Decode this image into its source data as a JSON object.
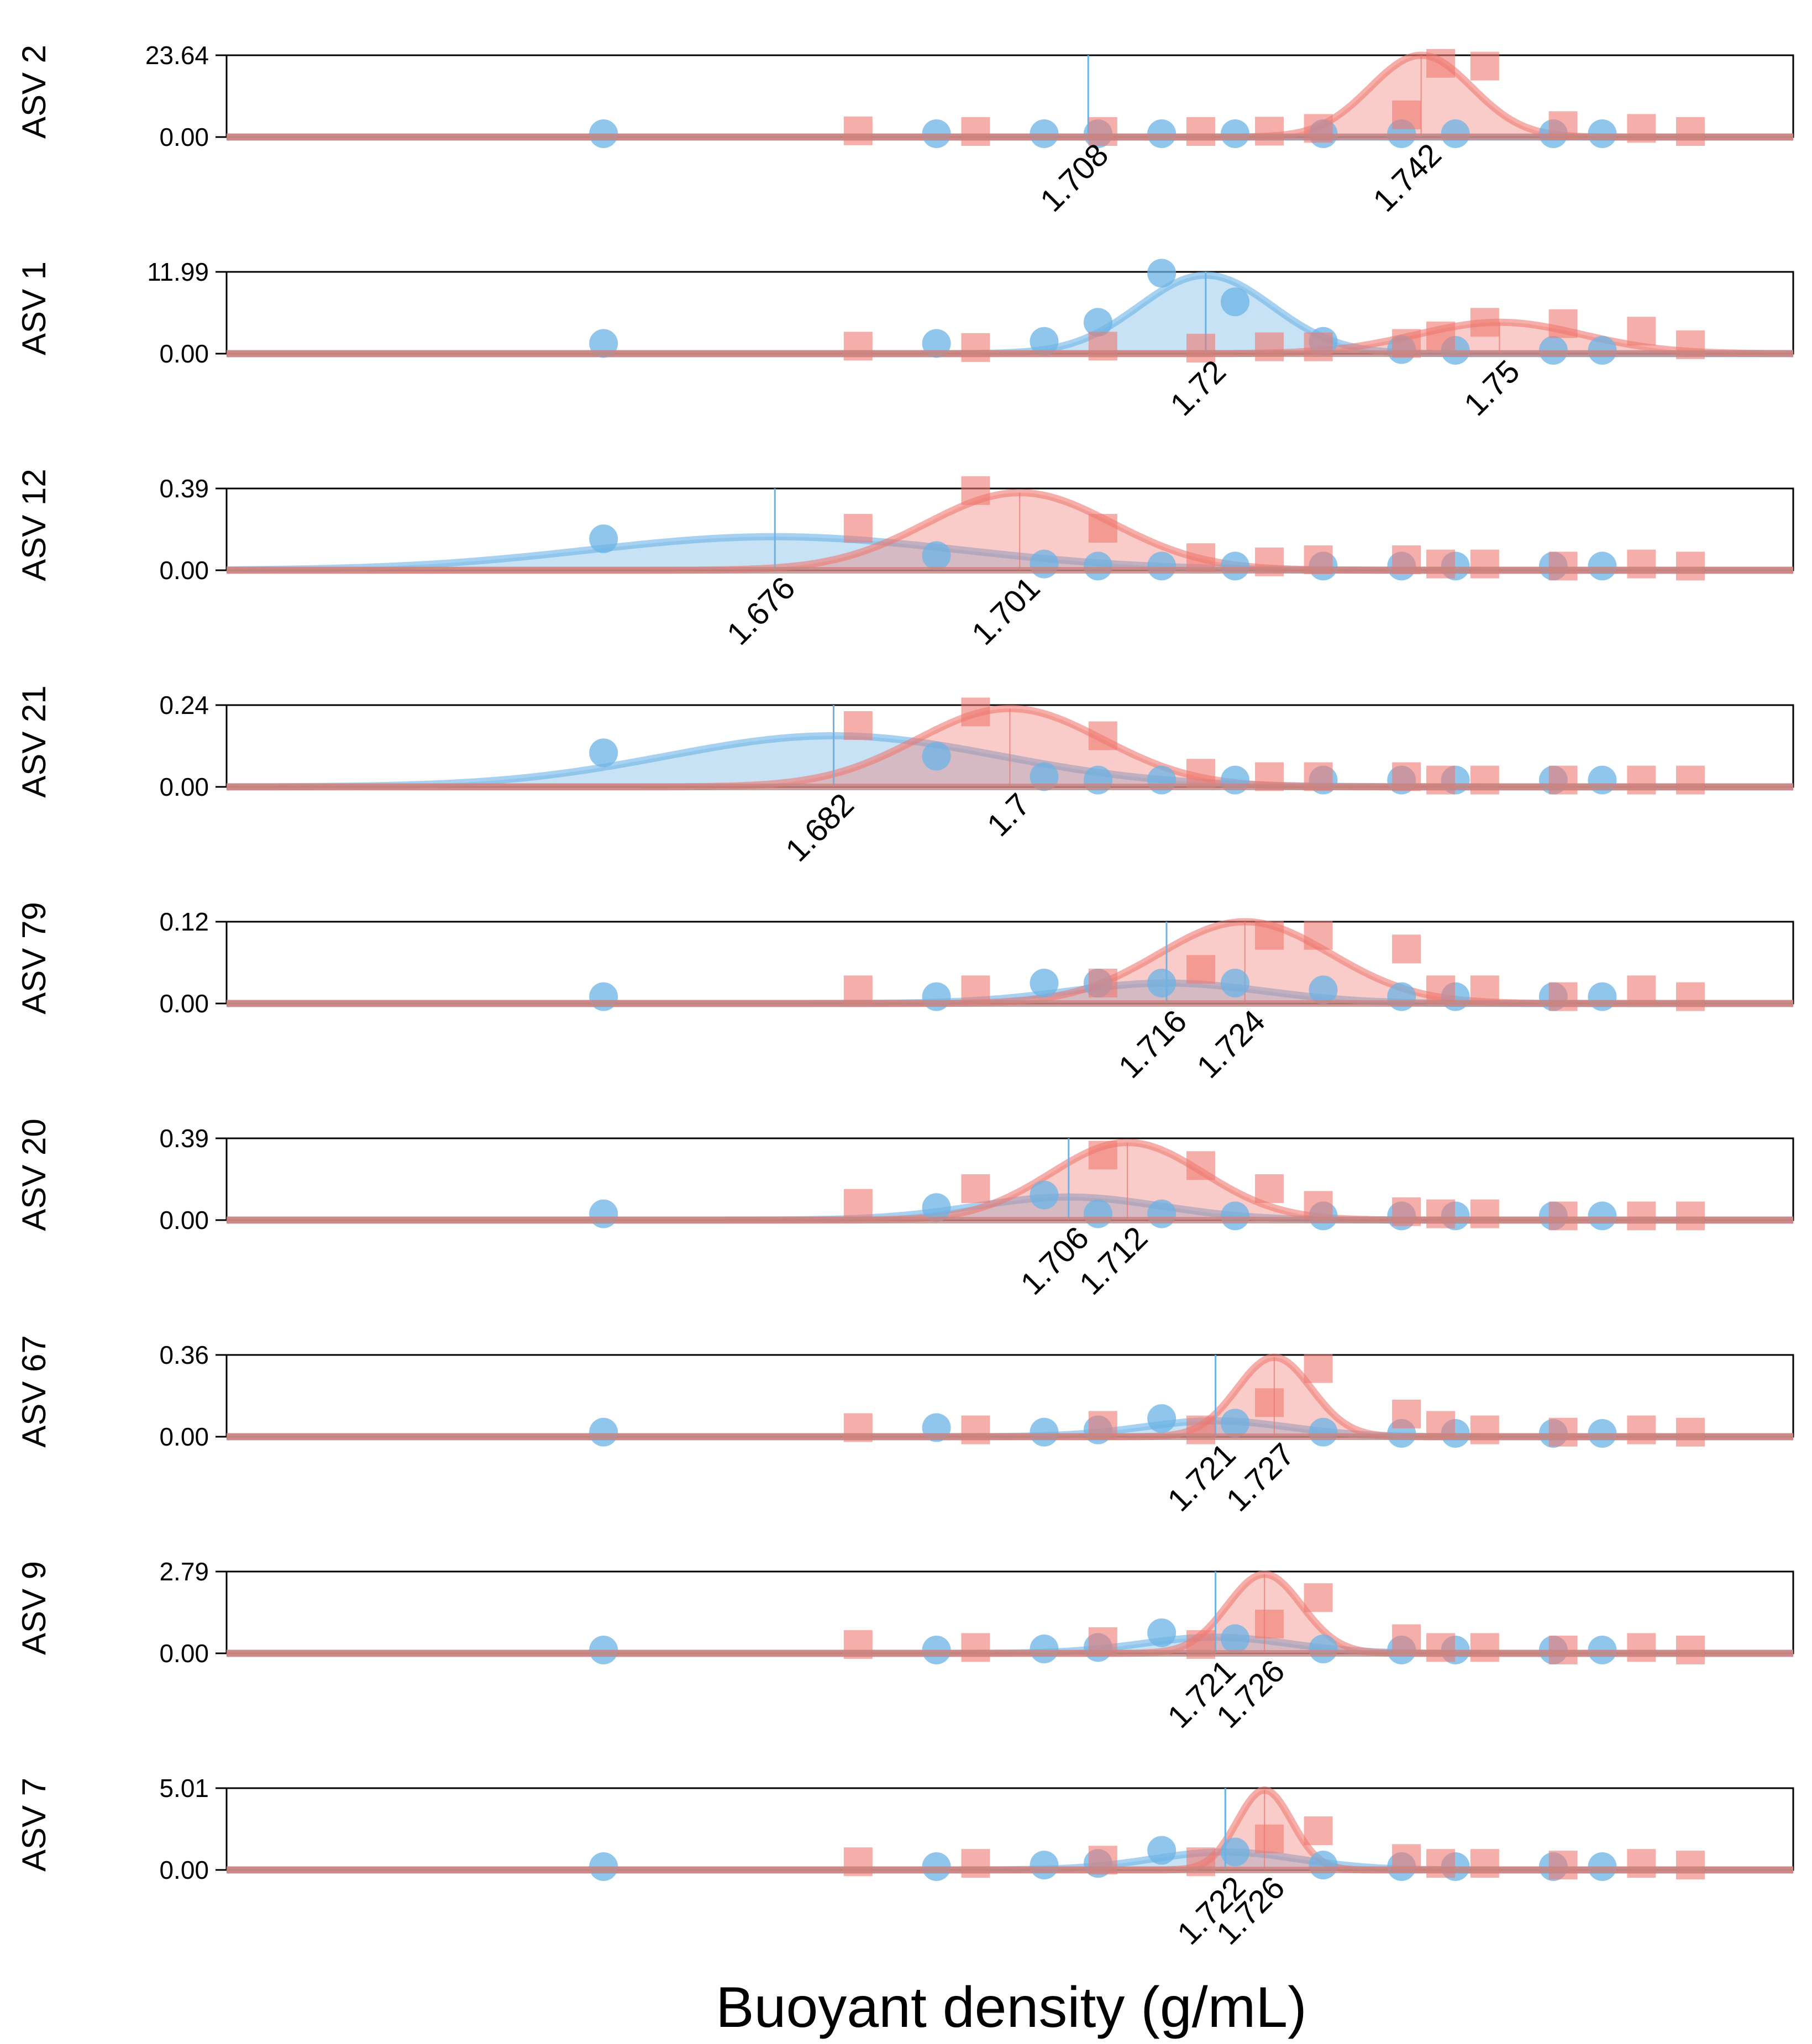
{
  "chart_data": {
    "type": "line",
    "title": "",
    "xlabel": "Buoyant density (g/mL)",
    "xlim": [
      1.62,
      1.78
    ],
    "colors": {
      "unlabeled": "#6bb3e6",
      "labeled": "#ee7870",
      "axis": "#000000"
    },
    "fractions": {
      "unlabeled_x": [
        1.6585,
        1.6925,
        1.7035,
        1.709,
        1.7155,
        1.723,
        1.732,
        1.74,
        1.7455,
        1.7555,
        1.7605
      ],
      "labeled_x": [
        1.6845,
        1.6965,
        1.7095,
        1.7195,
        1.7265,
        1.7315,
        1.7405,
        1.744,
        1.7485,
        1.7565,
        1.7645,
        1.7695
      ]
    },
    "panels": [
      {
        "name": "ASV 2",
        "ylabel": "ASV 2",
        "yticks": [
          "23.64",
          "0.00"
        ],
        "ymax": 23.64,
        "unlabeled_peak_label": "1.708",
        "labeled_peak_label": "1.742",
        "unlabeled_peak": 1.708,
        "labeled_peak": 1.742,
        "unlabeled_curve": {
          "mu": 1.708,
          "sd": 0.01,
          "amp": 0.0
        },
        "labeled_curve": {
          "mu": 1.742,
          "sd": 0.0052,
          "amp": 23.64
        },
        "unlabeled_values": [
          0.2,
          0.2,
          0.2,
          0.2,
          0.2,
          0.2,
          0.2,
          0.2,
          0.2,
          0.2,
          0.2
        ],
        "labeled_values": [
          1.8,
          1.6,
          1.6,
          1.6,
          1.7,
          2.5,
          6.4,
          21.3,
          20.5,
          3.3,
          2.5,
          1.6
        ]
      },
      {
        "name": "ASV 1",
        "ylabel": "ASV 1",
        "yticks": [
          "11.99",
          "0.00"
        ],
        "ymax": 11.99,
        "unlabeled_peak_label": "1.72",
        "labeled_peak_label": "1.75",
        "unlabeled_peak": 1.72,
        "labeled_peak": 1.75,
        "unlabeled_curve": {
          "mu": 1.72,
          "sd": 0.0068,
          "amp": 11.5
        },
        "labeled_curve": {
          "mu": 1.75,
          "sd": 0.0085,
          "amp": 4.6
        },
        "unlabeled_values": [
          1.5,
          1.5,
          1.8,
          4.6,
          11.8,
          7.6,
          1.8,
          0.6,
          0.4,
          0.3,
          0.3
        ],
        "labeled_values": [
          1.1,
          0.9,
          1.1,
          0.8,
          1.0,
          1.0,
          1.5,
          2.6,
          4.6,
          4.4,
          3.3,
          1.3
        ]
      },
      {
        "name": "ASV 12",
        "ylabel": "ASV 12",
        "yticks": [
          "0.39",
          "0.00"
        ],
        "ymax": 0.39,
        "unlabeled_peak_label": "1.676",
        "labeled_peak_label": "1.701",
        "unlabeled_peak": 1.676,
        "labeled_peak": 1.701,
        "unlabeled_curve": {
          "mu": 1.676,
          "sd": 0.019,
          "amp": 0.16
        },
        "labeled_curve": {
          "mu": 1.701,
          "sd": 0.0095,
          "amp": 0.37
        },
        "unlabeled_values": [
          0.15,
          0.07,
          0.03,
          0.02,
          0.02,
          0.02,
          0.02,
          0.02,
          0.02,
          0.02,
          0.02
        ],
        "labeled_values": [
          0.2,
          0.38,
          0.2,
          0.06,
          0.04,
          0.05,
          0.05,
          0.03,
          0.03,
          0.02,
          0.03,
          0.02
        ]
      },
      {
        "name": "ASV 21",
        "ylabel": "ASV 21",
        "yticks": [
          "0.24",
          "0.00"
        ],
        "ymax": 0.24,
        "unlabeled_peak_label": "1.682",
        "labeled_peak_label": "1.7",
        "unlabeled_peak": 1.682,
        "labeled_peak": 1.7,
        "unlabeled_curve": {
          "mu": 1.682,
          "sd": 0.017,
          "amp": 0.15
        },
        "labeled_curve": {
          "mu": 1.7,
          "sd": 0.0095,
          "amp": 0.23
        },
        "unlabeled_values": [
          0.1,
          0.09,
          0.03,
          0.02,
          0.02,
          0.02,
          0.02,
          0.02,
          0.02,
          0.02,
          0.02
        ],
        "labeled_values": [
          0.18,
          0.22,
          0.15,
          0.04,
          0.03,
          0.03,
          0.03,
          0.02,
          0.02,
          0.02,
          0.02,
          0.02
        ]
      },
      {
        "name": "ASV 79",
        "ylabel": "ASV 79",
        "yticks": [
          "0.12",
          "0.00"
        ],
        "ymax": 0.12,
        "unlabeled_peak_label": "1.716",
        "labeled_peak_label": "1.724",
        "unlabeled_peak": 1.716,
        "labeled_peak": 1.724,
        "unlabeled_curve": {
          "mu": 1.716,
          "sd": 0.01,
          "amp": 0.03
        },
        "labeled_curve": {
          "mu": 1.724,
          "sd": 0.0088,
          "amp": 0.12
        },
        "unlabeled_values": [
          0.01,
          0.01,
          0.03,
          0.03,
          0.03,
          0.03,
          0.02,
          0.01,
          0.01,
          0.01,
          0.01
        ],
        "labeled_values": [
          0.02,
          0.02,
          0.03,
          0.05,
          0.1,
          0.1,
          0.08,
          0.02,
          0.02,
          0.01,
          0.02,
          0.01
        ]
      },
      {
        "name": "ASV 20",
        "ylabel": "ASV 20",
        "yticks": [
          "0.39",
          "0.00"
        ],
        "ymax": 0.39,
        "unlabeled_peak_label": "1.706",
        "labeled_peak_label": "1.712",
        "unlabeled_peak": 1.706,
        "labeled_peak": 1.712,
        "unlabeled_curve": {
          "mu": 1.706,
          "sd": 0.0095,
          "amp": 0.11
        },
        "labeled_curve": {
          "mu": 1.712,
          "sd": 0.0078,
          "amp": 0.37
        },
        "unlabeled_values": [
          0.03,
          0.06,
          0.12,
          0.03,
          0.03,
          0.02,
          0.02,
          0.02,
          0.02,
          0.02,
          0.02
        ],
        "labeled_values": [
          0.08,
          0.15,
          0.31,
          0.26,
          0.15,
          0.07,
          0.04,
          0.03,
          0.03,
          0.02,
          0.02,
          0.02
        ]
      },
      {
        "name": "ASV 67",
        "ylabel": "ASV 67",
        "yticks": [
          "0.36",
          "0.00"
        ],
        "ymax": 0.36,
        "unlabeled_peak_label": "1.721",
        "labeled_peak_label": "1.727",
        "unlabeled_peak": 1.721,
        "labeled_peak": 1.727,
        "unlabeled_curve": {
          "mu": 1.721,
          "sd": 0.0075,
          "amp": 0.07
        },
        "labeled_curve": {
          "mu": 1.727,
          "sd": 0.0038,
          "amp": 0.35
        },
        "unlabeled_values": [
          0.02,
          0.04,
          0.02,
          0.03,
          0.08,
          0.06,
          0.02,
          0.01,
          0.01,
          0.01,
          0.01
        ],
        "labeled_values": [
          0.04,
          0.03,
          0.05,
          0.03,
          0.15,
          0.3,
          0.1,
          0.05,
          0.03,
          0.02,
          0.03,
          0.02
        ]
      },
      {
        "name": "ASV 9",
        "ylabel": "ASV 9",
        "yticks": [
          "2.79",
          "0.00"
        ],
        "ymax": 2.79,
        "unlabeled_peak_label": "1.721",
        "labeled_peak_label": "1.726",
        "unlabeled_peak": 1.721,
        "labeled_peak": 1.726,
        "unlabeled_curve": {
          "mu": 1.721,
          "sd": 0.0075,
          "amp": 0.55
        },
        "labeled_curve": {
          "mu": 1.726,
          "sd": 0.0038,
          "amp": 2.7
        },
        "unlabeled_values": [
          0.1,
          0.1,
          0.15,
          0.2,
          0.7,
          0.5,
          0.15,
          0.1,
          0.1,
          0.1,
          0.1
        ],
        "labeled_values": [
          0.3,
          0.2,
          0.4,
          0.3,
          1.0,
          1.9,
          0.5,
          0.2,
          0.2,
          0.1,
          0.2,
          0.1
        ]
      },
      {
        "name": "ASV 7",
        "ylabel": "ASV 7",
        "yticks": [
          "5.01",
          "0.00"
        ],
        "ymax": 5.01,
        "unlabeled_peak_label": "1.722",
        "labeled_peak_label": "1.726",
        "unlabeled_peak": 1.722,
        "labeled_peak": 1.726,
        "unlabeled_curve": {
          "mu": 1.722,
          "sd": 0.0075,
          "amp": 1.1
        },
        "labeled_curve": {
          "mu": 1.726,
          "sd": 0.0028,
          "amp": 4.9
        },
        "unlabeled_values": [
          0.2,
          0.2,
          0.3,
          0.4,
          1.2,
          1.1,
          0.3,
          0.2,
          0.2,
          0.2,
          0.2
        ],
        "labeled_values": [
          0.5,
          0.4,
          0.6,
          0.5,
          1.9,
          2.4,
          0.7,
          0.4,
          0.4,
          0.3,
          0.4,
          0.3
        ]
      }
    ]
  }
}
